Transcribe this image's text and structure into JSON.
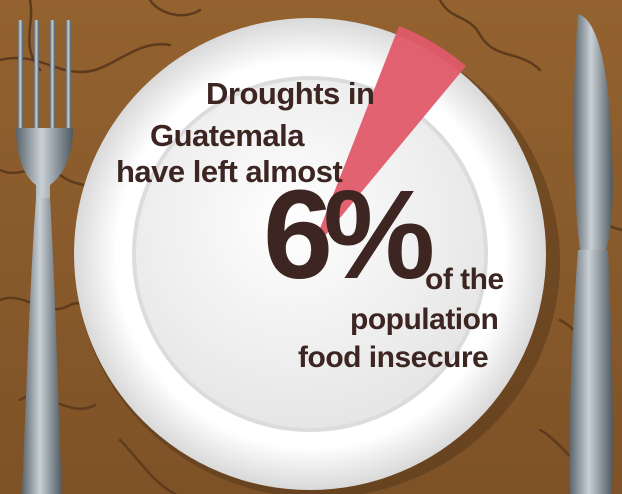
{
  "statistic": {
    "line1": "Droughts in",
    "line2": "Guatemala",
    "line3": "have left almost",
    "value": "6%",
    "line4": "of the",
    "line5": "population",
    "line6": "food insecure"
  },
  "slice_fraction": 0.06,
  "colors": {
    "table": "#8a5a2b",
    "plate": "#f2f2f2",
    "slice": "#e05a6a",
    "text": "#3d2622"
  }
}
